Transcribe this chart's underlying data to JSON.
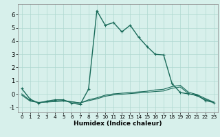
{
  "xlabel": "Humidex (Indice chaleur)",
  "background_color": "#d7f0eb",
  "grid_color": "#afd8d0",
  "line_color": "#1a6b5a",
  "xlim": [
    -0.5,
    23.5
  ],
  "ylim": [
    -1.4,
    6.8
  ],
  "xticks": [
    0,
    1,
    2,
    3,
    4,
    5,
    6,
    7,
    8,
    9,
    10,
    11,
    12,
    13,
    14,
    15,
    16,
    17,
    18,
    19,
    20,
    21,
    22,
    23
  ],
  "yticks": [
    -1,
    0,
    1,
    2,
    3,
    4,
    5,
    6
  ],
  "series": [
    {
      "x": [
        0,
        1,
        2,
        3,
        4,
        5,
        6,
        7,
        8,
        9,
        10,
        11,
        12,
        13,
        14,
        15,
        16,
        17,
        18,
        19,
        20,
        21,
        22,
        23
      ],
      "y": [
        0.4,
        -0.4,
        -0.7,
        -0.55,
        -0.45,
        -0.45,
        -0.7,
        -0.8,
        0.35,
        6.3,
        5.2,
        5.4,
        4.7,
        5.2,
        4.3,
        3.6,
        3.0,
        2.95,
        0.8,
        0.1,
        0.0,
        -0.1,
        -0.5,
        -0.65
      ],
      "marker": true,
      "linestyle": "-",
      "linewidth": 1.0
    },
    {
      "x": [
        0,
        1,
        2,
        3,
        4,
        5,
        6,
        7,
        8,
        9,
        10,
        11,
        12,
        13,
        14,
        15,
        16,
        17,
        18,
        19,
        20,
        21,
        22,
        23
      ],
      "y": [
        0.0,
        -0.5,
        -0.65,
        -0.6,
        -0.55,
        -0.5,
        -0.6,
        -0.7,
        -0.45,
        -0.3,
        -0.1,
        0.0,
        0.05,
        0.1,
        0.15,
        0.2,
        0.3,
        0.35,
        0.55,
        0.65,
        0.12,
        -0.05,
        -0.35,
        -0.62
      ],
      "marker": false,
      "linestyle": "-",
      "linewidth": 0.8
    },
    {
      "x": [
        0,
        1,
        2,
        3,
        4,
        5,
        6,
        7,
        8,
        9,
        10,
        11,
        12,
        13,
        14,
        15,
        16,
        17,
        18,
        19,
        20,
        21,
        22,
        23
      ],
      "y": [
        -0.1,
        -0.55,
        -0.65,
        -0.62,
        -0.58,
        -0.55,
        -0.6,
        -0.68,
        -0.52,
        -0.38,
        -0.18,
        -0.08,
        -0.03,
        0.02,
        0.07,
        0.12,
        0.18,
        0.22,
        0.42,
        0.52,
        0.02,
        -0.15,
        -0.42,
        -0.65
      ],
      "marker": false,
      "linestyle": "-",
      "linewidth": 0.8
    }
  ]
}
